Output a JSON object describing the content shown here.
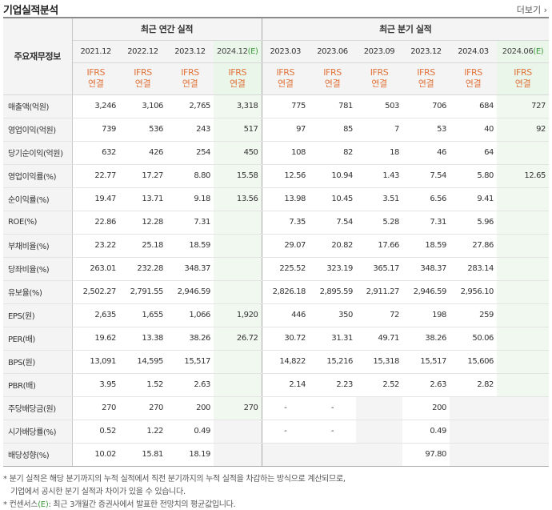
{
  "title": "기업실적분석",
  "more": "더보기",
  "header": {
    "corner": "주요재무정보",
    "annual_label": "최근 연간 실적",
    "quarter_label": "최근 분기 실적",
    "periods": [
      "2021.12",
      "2022.12",
      "2023.12",
      "2024.12",
      "2023.03",
      "2023.06",
      "2023.09",
      "2023.12",
      "2024.03",
      "2024.06"
    ],
    "estimate_suffix": "(E)",
    "kind_line1": "IFRS",
    "kind_line2": "연결"
  },
  "rows": [
    {
      "label": "매출액(억원)",
      "values": [
        "3,246",
        "3,106",
        "2,765",
        "3,318",
        "775",
        "781",
        "503",
        "706",
        "684",
        "727"
      ]
    },
    {
      "label": "영업이익(억원)",
      "values": [
        "739",
        "536",
        "243",
        "517",
        "97",
        "85",
        "7",
        "53",
        "40",
        "92"
      ]
    },
    {
      "label": "당기순이익(억원)",
      "values": [
        "632",
        "426",
        "254",
        "450",
        "108",
        "82",
        "18",
        "46",
        "64",
        ""
      ]
    },
    {
      "label": "영업이익률(%)",
      "values": [
        "22.77",
        "17.27",
        "8.80",
        "15.58",
        "12.56",
        "10.94",
        "1.43",
        "7.54",
        "5.80",
        "12.65"
      ]
    },
    {
      "label": "순이익률(%)",
      "values": [
        "19.47",
        "13.71",
        "9.18",
        "13.56",
        "13.98",
        "10.45",
        "3.51",
        "6.56",
        "9.41",
        ""
      ]
    },
    {
      "label": "ROE(%)",
      "values": [
        "22.86",
        "12.28",
        "7.31",
        "",
        "7.35",
        "7.54",
        "5.28",
        "7.31",
        "5.96",
        ""
      ]
    },
    {
      "label": "부채비율(%)",
      "values": [
        "23.22",
        "25.18",
        "18.59",
        "",
        "29.07",
        "20.82",
        "17.66",
        "18.59",
        "27.86",
        ""
      ]
    },
    {
      "label": "당좌비율(%)",
      "values": [
        "263.01",
        "232.28",
        "348.37",
        "",
        "225.52",
        "323.19",
        "365.17",
        "348.37",
        "283.14",
        ""
      ]
    },
    {
      "label": "유보율(%)",
      "values": [
        "2,502.27",
        "2,791.55",
        "2,946.59",
        "",
        "2,826.18",
        "2,895.59",
        "2,911.27",
        "2,946.59",
        "2,956.10",
        ""
      ]
    },
    {
      "label": "EPS(원)",
      "values": [
        "2,635",
        "1,655",
        "1,066",
        "1,920",
        "446",
        "350",
        "72",
        "198",
        "259",
        ""
      ]
    },
    {
      "label": "PER(배)",
      "values": [
        "19.62",
        "13.38",
        "38.26",
        "26.72",
        "30.72",
        "31.31",
        "49.71",
        "38.26",
        "50.06",
        ""
      ]
    },
    {
      "label": "BPS(원)",
      "values": [
        "13,091",
        "14,595",
        "15,517",
        "",
        "14,822",
        "15,216",
        "15,318",
        "15,517",
        "15,606",
        ""
      ]
    },
    {
      "label": "PBR(배)",
      "values": [
        "3.95",
        "1.52",
        "2.63",
        "",
        "2.14",
        "2.23",
        "2.52",
        "2.63",
        "2.82",
        ""
      ]
    },
    {
      "label": "주당배당금(원)",
      "values": [
        "270",
        "270",
        "200",
        "270",
        "-",
        "-",
        "",
        "200",
        "",
        ""
      ]
    },
    {
      "label": "시가배당률(%)",
      "values": [
        "0.52",
        "1.22",
        "0.49",
        "",
        "-",
        "-",
        "",
        "0.49",
        "",
        ""
      ]
    },
    {
      "label": "배당성향(%)",
      "values": [
        "10.02",
        "15.81",
        "18.19",
        "",
        "",
        "",
        "",
        "97.80",
        "",
        ""
      ]
    }
  ],
  "notes": {
    "line1": "분기 실적은 해당 분기까지의 누적 실적에서 직전 분기까지의 누적 실적을 차감하는 방식으로 계산되므로,",
    "line2": "기업에서 공시한 분기 실적과 차이가 있을 수 있습니다.",
    "line3_a": "컨센서스",
    "line3_e": "(E)",
    "line3_b": ": 최근 3개월간 증권사에서 발표한 전망치의 평균값입니다."
  }
}
